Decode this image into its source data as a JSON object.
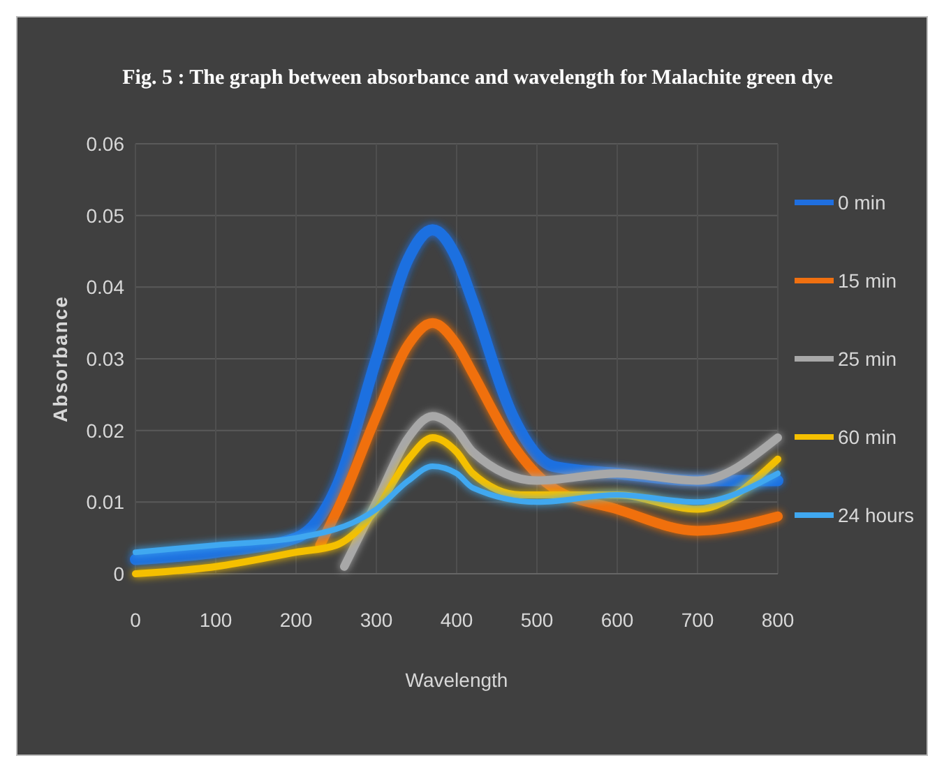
{
  "chart_data": {
    "type": "line",
    "title": "Fig. 5 : The graph between absorbance and wavelength for Malachite green dye",
    "xlabel": "Wavelength",
    "ylabel": "Absorbance",
    "xlim": [
      0,
      800
    ],
    "xticks": [
      0,
      100,
      200,
      300,
      400,
      500,
      600,
      700,
      800
    ],
    "ylim": [
      0,
      0.06
    ],
    "yticks": [
      0,
      0.01,
      0.02,
      0.03,
      0.04,
      0.05,
      0.06
    ],
    "grid": true,
    "legend": "right",
    "line_style": "solid",
    "series": [
      {
        "name": "0 min",
        "color": "#1f6fe0",
        "x": [
          0,
          100,
          200,
          250,
          300,
          340,
          370,
          400,
          420,
          470,
          520,
          600,
          700,
          800
        ],
        "values": [
          0.002,
          0.003,
          0.005,
          0.012,
          0.03,
          0.044,
          0.048,
          0.044,
          0.038,
          0.022,
          0.015,
          0.014,
          0.013,
          0.013
        ]
      },
      {
        "name": "15 min",
        "color": "#f07010",
        "x": [
          230,
          260,
          300,
          340,
          370,
          400,
          420,
          470,
          520,
          600,
          700,
          800
        ],
        "values": [
          0.004,
          0.011,
          0.022,
          0.032,
          0.035,
          0.032,
          0.028,
          0.018,
          0.012,
          0.009,
          0.006,
          0.008
        ]
      },
      {
        "name": "25 min",
        "color": "#a8a8a8",
        "x": [
          260,
          300,
          340,
          370,
          400,
          420,
          500,
          600,
          700,
          800
        ],
        "values": [
          0.001,
          0.01,
          0.019,
          0.022,
          0.02,
          0.017,
          0.013,
          0.014,
          0.013,
          0.019
        ]
      },
      {
        "name": "60 min",
        "color": "#f5c000",
        "x": [
          0,
          100,
          200,
          250,
          300,
          340,
          370,
          400,
          420,
          480,
          600,
          700,
          800
        ],
        "values": [
          0,
          0.001,
          0.003,
          0.004,
          0.009,
          0.016,
          0.019,
          0.017,
          0.014,
          0.011,
          0.011,
          0.009,
          0.016
        ]
      },
      {
        "name": "24 hours",
        "color": "#40a8f0",
        "x": [
          0,
          100,
          200,
          300,
          340,
          370,
          400,
          420,
          500,
          600,
          700,
          800
        ],
        "values": [
          0.003,
          0.004,
          0.005,
          0.009,
          0.013,
          0.015,
          0.014,
          0.012,
          0.01,
          0.011,
          0.01,
          0.014
        ]
      }
    ]
  }
}
